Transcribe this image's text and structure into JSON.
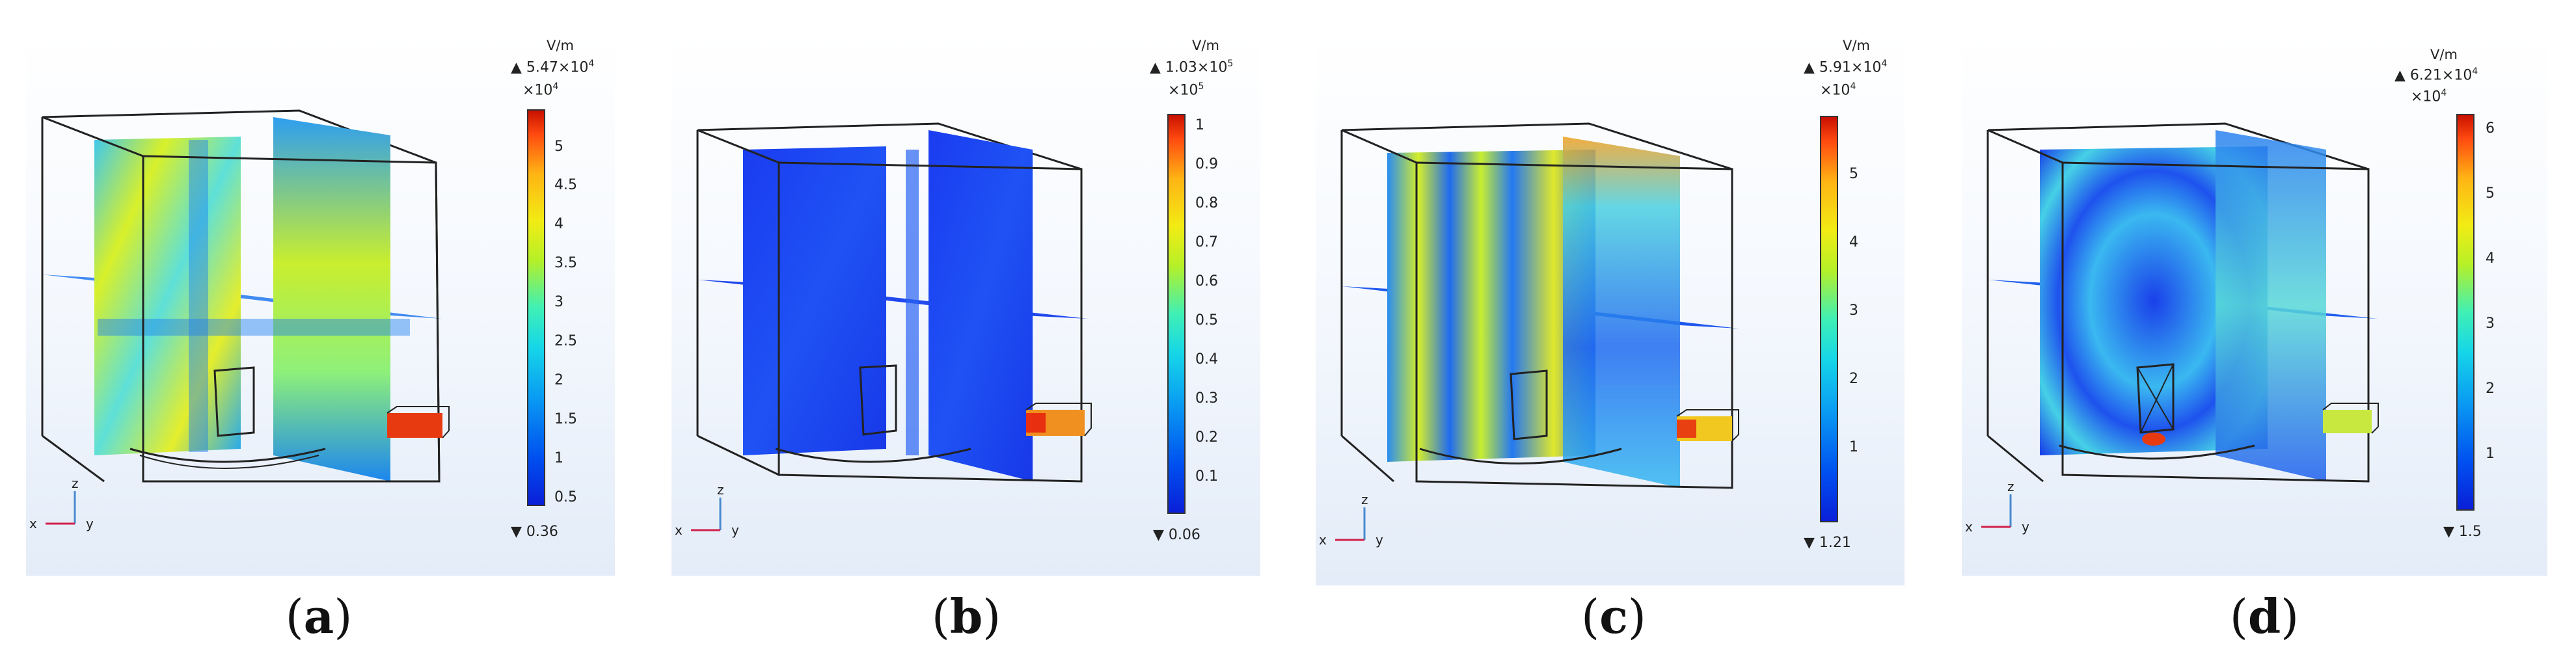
{
  "figure": {
    "panels": [
      {
        "label": "a",
        "colorbar": {
          "unit": "V/m",
          "max_text": "▲ 5.47×10",
          "max_exp": "4",
          "exp_text": "×10",
          "exp_exp": "4",
          "ticks": [
            "5",
            "4.5",
            "4",
            "3.5",
            "3",
            "2.5",
            "2",
            "1.5",
            "1",
            "0.5"
          ],
          "min_text": "▼ 0.36"
        },
        "axes": {
          "x": "x",
          "y": "y",
          "z": "z"
        }
      },
      {
        "label": "b",
        "colorbar": {
          "unit": "V/m",
          "max_text": "▲ 1.03×10",
          "max_exp": "5",
          "exp_text": "×10",
          "exp_exp": "5",
          "ticks": [
            "1",
            "0.9",
            "0.8",
            "0.7",
            "0.6",
            "0.5",
            "0.4",
            "0.3",
            "0.2",
            "0.1"
          ],
          "min_text": "▼ 0.06"
        },
        "axes": {
          "x": "x",
          "y": "y",
          "z": "z"
        }
      },
      {
        "label": "c",
        "colorbar": {
          "unit": "V/m",
          "max_text": "▲ 5.91×10",
          "max_exp": "4",
          "exp_text": "×10",
          "exp_exp": "4",
          "ticks": [
            "5",
            "4",
            "3",
            "2",
            "1"
          ],
          "min_text": "▼ 1.21"
        },
        "axes": {
          "x": "x",
          "y": "y",
          "z": "z"
        }
      },
      {
        "label": "d",
        "colorbar": {
          "unit": "V/m",
          "max_text": "▲ 6.21×10",
          "max_exp": "4",
          "exp_text": "×10",
          "exp_exp": "4",
          "ticks": [
            "6",
            "5",
            "4",
            "3",
            "2",
            "1"
          ],
          "min_text": "▼ 1.5"
        },
        "axes": {
          "x": "x",
          "y": "y",
          "z": "z"
        }
      }
    ]
  }
}
